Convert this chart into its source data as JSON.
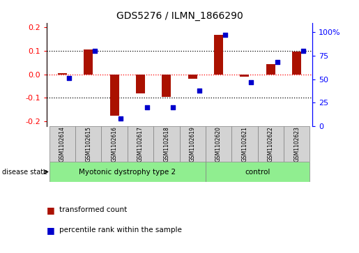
{
  "title": "GDS5276 / ILMN_1866290",
  "samples": [
    "GSM1102614",
    "GSM1102615",
    "GSM1102616",
    "GSM1102617",
    "GSM1102618",
    "GSM1102619",
    "GSM1102620",
    "GSM1102621",
    "GSM1102622",
    "GSM1102623"
  ],
  "transformed_count": [
    0.005,
    0.105,
    -0.175,
    -0.082,
    -0.095,
    -0.018,
    0.17,
    -0.01,
    0.044,
    0.098
  ],
  "percentile_rank": [
    51,
    80,
    8,
    20,
    20,
    38,
    97,
    47,
    68,
    80
  ],
  "disease_groups": [
    {
      "label": "Myotonic dystrophy type 2",
      "start": 0,
      "end": 6
    },
    {
      "label": "control",
      "start": 6,
      "end": 10
    }
  ],
  "ylim_left": [
    -0.22,
    0.22
  ],
  "ylim_right": [
    0,
    110
  ],
  "yticks_left": [
    -0.2,
    -0.1,
    0.0,
    0.1,
    0.2
  ],
  "yticks_right": [
    0,
    25,
    50,
    75,
    100
  ],
  "ytick_labels_right": [
    "0",
    "25",
    "50",
    "75",
    "100%"
  ],
  "bar_color": "#AA1100",
  "dot_color": "#0000CC",
  "background_color": "#FFFFFF",
  "sample_box_color": "#D3D3D3",
  "group1_color": "#90EE90",
  "legend_bar_label": "transformed count",
  "legend_dot_label": "percentile rank within the sample",
  "disease_state_label": "disease state"
}
